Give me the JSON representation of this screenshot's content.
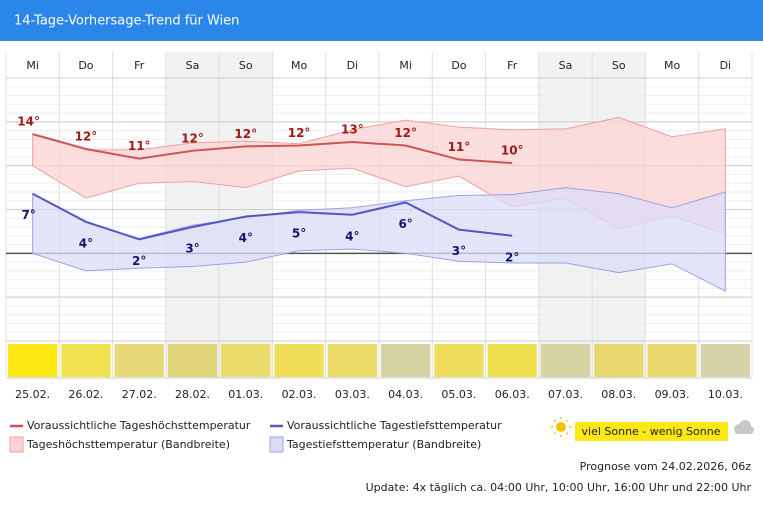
{
  "header": {
    "title": "14-Tage-Vorhersage-Trend für Wien"
  },
  "chart_data": {
    "type": "line",
    "weekdays": [
      "Mi",
      "Do",
      "Fr",
      "Sa",
      "So",
      "Mo",
      "Di",
      "Mi",
      "Do",
      "Fr",
      "Sa",
      "So",
      "Mo",
      "Di"
    ],
    "categories": [
      "25.02.",
      "26.02.",
      "27.02.",
      "28.02.",
      "01.03.",
      "02.03.",
      "03.03.",
      "04.03.",
      "05.03.",
      "06.03.",
      "07.03.",
      "08.03.",
      "09.03.",
      "10.03."
    ],
    "ylim": [
      -10,
      20
    ],
    "yticks": [
      -10,
      -5,
      0,
      5,
      10,
      15,
      20
    ],
    "grid": true,
    "shaded_days": [
      3,
      4,
      10,
      11
    ],
    "series": [
      {
        "name": "Voraussichtliche Tageshöchsttemperatur",
        "color": "#cc5555",
        "label_color": "#a01818",
        "values": [
          13.6,
          11.9,
          10.8,
          11.7,
          12.2,
          12.3,
          12.7,
          12.3,
          10.7,
          10.3,
          null,
          null,
          null,
          null
        ],
        "value_labels": [
          "14°",
          "12°",
          "11°",
          "12°",
          "12°",
          "12°",
          "13°",
          "12°",
          "11°",
          "10°",
          null,
          null,
          null,
          null
        ]
      },
      {
        "name": "Voraussichtliche Tagestiefsttemperatur",
        "color": "#5555c4",
        "label_color": "#14146e",
        "values": [
          6.8,
          3.6,
          1.6,
          3.0,
          4.2,
          4.7,
          4.4,
          5.8,
          2.7,
          2.0,
          null,
          null,
          null,
          null
        ],
        "value_labels": [
          "7°",
          "4°",
          "2°",
          "3°",
          "4°",
          "5°",
          "4°",
          "6°",
          "3°",
          "2°",
          null,
          null,
          null,
          null
        ]
      }
    ],
    "bands": [
      {
        "name": "Tageshöchsttemperatur (Bandbreite)",
        "color": "#fbd3d3",
        "edge": "#f0a0a0",
        "upper": [
          13.6,
          11.8,
          11.8,
          12.6,
          12.8,
          12.5,
          14.1,
          15.2,
          14.4,
          14.1,
          14.2,
          15.5,
          13.3,
          14.2
        ],
        "lower": [
          10,
          6.3,
          8,
          8.2,
          7.5,
          9.4,
          9.7,
          7.6,
          8.8,
          5.3,
          6.3,
          2.8,
          4.3,
          2.2
        ]
      },
      {
        "name": "Tagestiefsttemperatur (Bandbreite)",
        "color": "#dcdcf8",
        "edge": "#a0a0e8",
        "upper": [
          6.8,
          3.5,
          1.7,
          3.2,
          4.1,
          4.9,
          5.2,
          6,
          6.6,
          6.7,
          7.5,
          6.8,
          5.2,
          7
        ],
        "lower": [
          0,
          -2,
          -1.7,
          -1.5,
          -1,
          0.3,
          0.5,
          0,
          -0.9,
          -1.1,
          -1.1,
          -2.2,
          -1.2,
          -4.3
        ]
      }
    ],
    "sunshine": {
      "label": "viel Sonne - wenig Sonne",
      "colors": [
        "#fde814",
        "#f2e14f",
        "#e7d877",
        "#e3d57a",
        "#eadb6a",
        "#f0de58",
        "#ebd968",
        "#d6d2a4",
        "#efdd5c",
        "#f0df4f",
        "#d7d3a5",
        "#e8d76c",
        "#e9d76e",
        "#d6d3a8"
      ]
    }
  },
  "footer": {
    "forecast": "Prognose vom 24.02.2026, 06z",
    "update": "Update: 4x täglich ca. 04:00 Uhr, 10:00 Uhr, 16:00 Uhr und 22:00 Uhr"
  }
}
